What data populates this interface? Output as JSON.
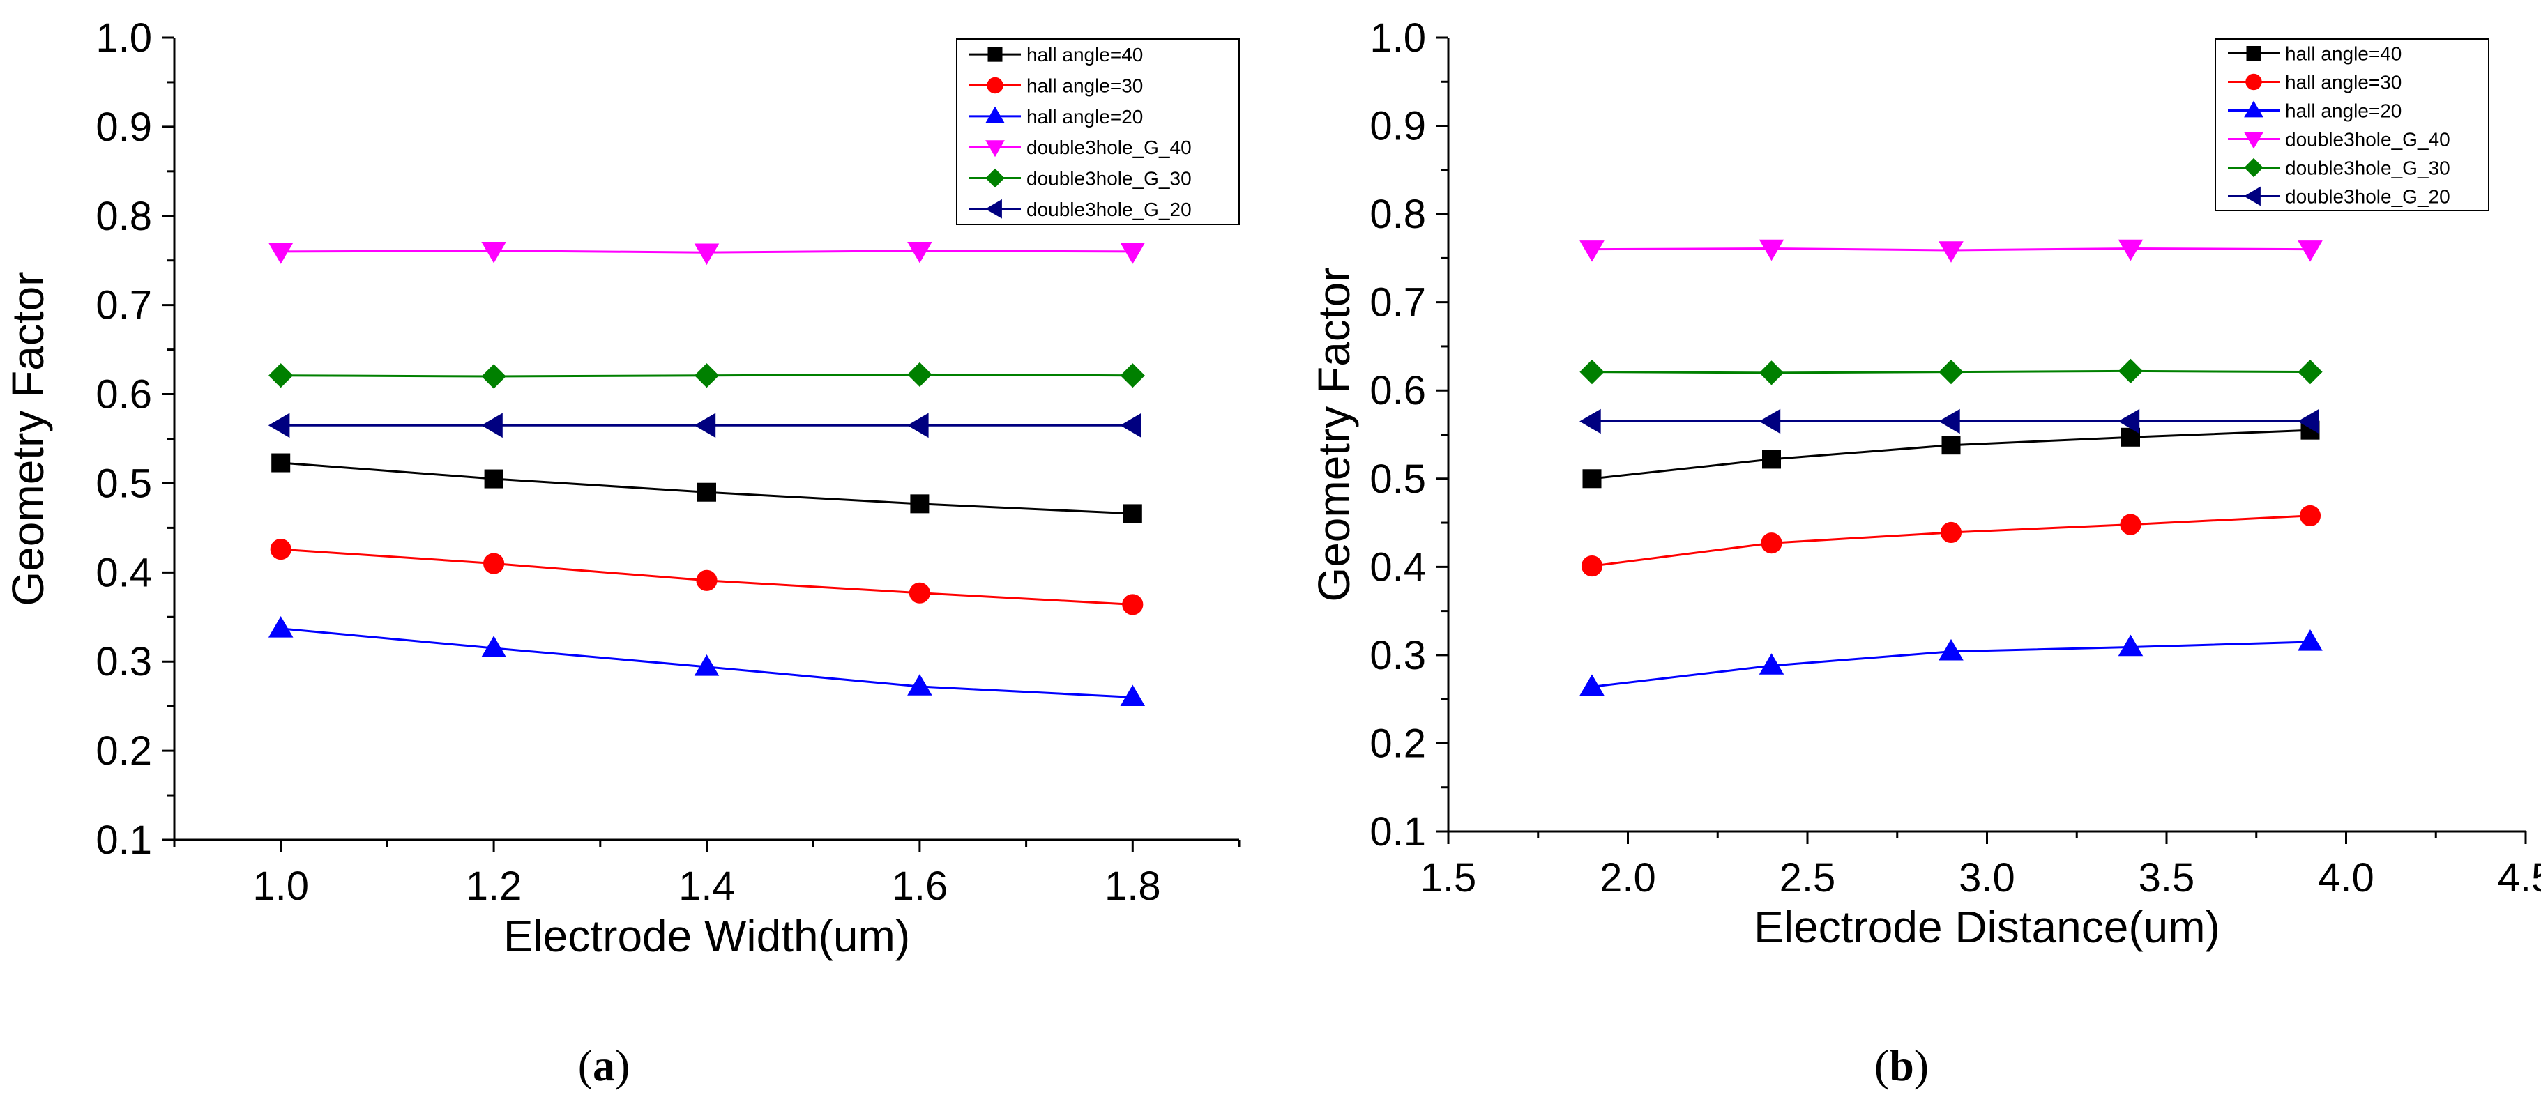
{
  "chart_data": [
    {
      "type": "line",
      "panel_label": "a",
      "xlabel": "Electrode Width(um)",
      "ylabel": "Geometry Factor",
      "xlim": [
        0.9,
        1.9
      ],
      "ylim": [
        0.1,
        1.0
      ],
      "xticks": [
        "1.0",
        "1.2",
        "1.4",
        "1.6",
        "1.8"
      ],
      "yticks": [
        "0.1",
        "0.2",
        "0.3",
        "0.4",
        "0.5",
        "0.6",
        "0.7",
        "0.8",
        "0.9",
        "1.0"
      ],
      "legend_position": "top-right",
      "x": [
        1.0,
        1.2,
        1.4,
        1.6,
        1.8
      ],
      "series": [
        {
          "name": "hall angle=40",
          "marker": "square",
          "color": "#000000",
          "values": [
            0.523,
            0.505,
            0.49,
            0.477,
            0.466
          ]
        },
        {
          "name": "hall angle=30",
          "marker": "circle",
          "color": "#ff0000",
          "values": [
            0.426,
            0.41,
            0.391,
            0.377,
            0.364
          ]
        },
        {
          "name": "hall angle=20",
          "marker": "triangle-up",
          "color": "#0000ff",
          "values": [
            0.337,
            0.315,
            0.294,
            0.272,
            0.26
          ]
        },
        {
          "name": "double3hole_G_40",
          "marker": "triangle-down",
          "color": "#ff00ff",
          "values": [
            0.76,
            0.761,
            0.759,
            0.761,
            0.76
          ]
        },
        {
          "name": "double3hole_G_30",
          "marker": "diamond",
          "color": "#008000",
          "values": [
            0.621,
            0.62,
            0.621,
            0.622,
            0.621
          ]
        },
        {
          "name": "double3hole_G_20",
          "marker": "triangle-left",
          "color": "#000080",
          "values": [
            0.565,
            0.565,
            0.565,
            0.565,
            0.565
          ]
        }
      ]
    },
    {
      "type": "line",
      "panel_label": "b",
      "xlabel": "Electrode Distance(um)",
      "ylabel": "Geometry Factor",
      "xlim": [
        1.5,
        4.5
      ],
      "ylim": [
        0.1,
        1.0
      ],
      "xticks": [
        "1.5",
        "2.0",
        "2.5",
        "3.0",
        "3.5",
        "4.0",
        "4.5"
      ],
      "yticks": [
        "0.1",
        "0.2",
        "0.3",
        "0.4",
        "0.5",
        "0.6",
        "0.7",
        "0.8",
        "0.9",
        "1.0"
      ],
      "legend_position": "top-right",
      "x": [
        1.9,
        2.4,
        2.9,
        3.4,
        3.9
      ],
      "series": [
        {
          "name": "hall angle=40",
          "marker": "square",
          "color": "#000000",
          "values": [
            0.5,
            0.522,
            0.538,
            0.547,
            0.555
          ]
        },
        {
          "name": "hall angle=30",
          "marker": "circle",
          "color": "#ff0000",
          "values": [
            0.401,
            0.427,
            0.439,
            0.448,
            0.458
          ]
        },
        {
          "name": "hall angle=20",
          "marker": "triangle-up",
          "color": "#0000ff",
          "values": [
            0.264,
            0.288,
            0.304,
            0.309,
            0.315
          ]
        },
        {
          "name": "double3hole_G_40",
          "marker": "triangle-down",
          "color": "#ff00ff",
          "values": [
            0.76,
            0.761,
            0.759,
            0.761,
            0.76
          ]
        },
        {
          "name": "double3hole_G_30",
          "marker": "diamond",
          "color": "#008000",
          "values": [
            0.621,
            0.62,
            0.621,
            0.622,
            0.621
          ]
        },
        {
          "name": "double3hole_G_20",
          "marker": "triangle-left",
          "color": "#000080",
          "values": [
            0.565,
            0.565,
            0.565,
            0.565,
            0.565
          ]
        }
      ]
    }
  ]
}
